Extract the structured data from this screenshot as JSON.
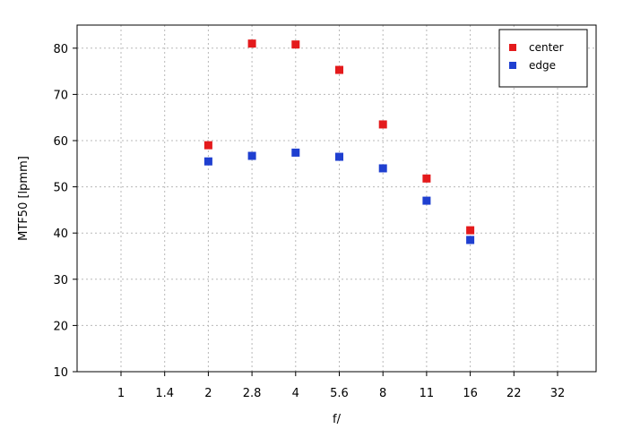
{
  "chart_data": {
    "type": "scatter",
    "title": "",
    "xlabel": "f/",
    "ylabel": "MTF50 [lpmm]",
    "x_ticks": [
      "1",
      "1.4",
      "2",
      "2.8",
      "4",
      "5.6",
      "8",
      "11",
      "16",
      "22",
      "32"
    ],
    "y_ticks": [
      10,
      20,
      30,
      40,
      50,
      60,
      70,
      80
    ],
    "ylim": [
      10,
      85
    ],
    "grid": true,
    "legend_position": "top-right",
    "series": [
      {
        "name": "center",
        "color": "#e41a1c",
        "points": [
          {
            "x": "2",
            "y": 59
          },
          {
            "x": "2.8",
            "y": 81
          },
          {
            "x": "4",
            "y": 80.8
          },
          {
            "x": "5.6",
            "y": 75.3
          },
          {
            "x": "8",
            "y": 63.5
          },
          {
            "x": "11",
            "y": 51.8
          },
          {
            "x": "16",
            "y": 40.6
          }
        ]
      },
      {
        "name": "edge",
        "color": "#1f3fd0",
        "points": [
          {
            "x": "2",
            "y": 55.5
          },
          {
            "x": "2.8",
            "y": 56.7
          },
          {
            "x": "4",
            "y": 57.4
          },
          {
            "x": "5.6",
            "y": 56.5
          },
          {
            "x": "8",
            "y": 54
          },
          {
            "x": "11",
            "y": 47
          },
          {
            "x": "16",
            "y": 38.5
          }
        ]
      }
    ]
  }
}
